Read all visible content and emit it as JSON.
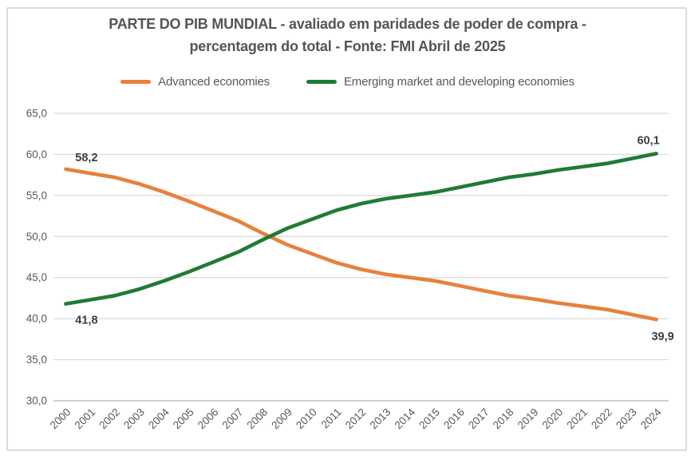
{
  "header": {
    "title_line1": "PARTE DO PIB MUNDIAL - avaliado em paridades de poder de compra -",
    "title_line2": "percentagem do total - Fonte: FMI Abril de 2025"
  },
  "chart_data": {
    "type": "line",
    "title": "PARTE DO PIB MUNDIAL - avaliado em paridades de poder de compra - percentagem do total - Fonte: FMI Abril de 2025",
    "legend_position": "top",
    "grid": true,
    "decimal_separator": ",",
    "x_labels": [
      "2000",
      "2001",
      "2002",
      "2003",
      "2004",
      "2005",
      "2006",
      "2007",
      "2008",
      "2009",
      "2010",
      "2011",
      "2012",
      "2013",
      "2014",
      "2015",
      "2016",
      "2017",
      "2018",
      "2019",
      "2020",
      "2021",
      "2022",
      "2023",
      "2024"
    ],
    "ylim": [
      30,
      65
    ],
    "y_ticks": {
      "values": [
        30,
        35,
        40,
        45,
        50,
        55,
        60,
        65
      ],
      "labels": [
        "30,0",
        "35,0",
        "40,0",
        "45,0",
        "50,0",
        "55,0",
        "60,0",
        "65,0"
      ]
    },
    "series": [
      {
        "name": "Advanced economies",
        "color": "#E8803C",
        "values": [
          58.2,
          57.7,
          57.2,
          56.4,
          55.4,
          54.3,
          53.1,
          51.9,
          50.4,
          49.0,
          47.9,
          46.8,
          46.0,
          45.4,
          45.0,
          44.6,
          44.0,
          43.4,
          42.8,
          42.4,
          41.9,
          41.5,
          41.1,
          40.5,
          39.9
        ]
      },
      {
        "name": "Emerging market and developing economies",
        "color": "#1F7B33",
        "values": [
          41.8,
          42.3,
          42.8,
          43.6,
          44.6,
          45.7,
          46.9,
          48.1,
          49.6,
          51.0,
          52.1,
          53.2,
          54.0,
          54.6,
          55.0,
          55.4,
          56.0,
          56.6,
          57.2,
          57.6,
          58.1,
          58.5,
          58.9,
          59.5,
          60.1
        ]
      }
    ],
    "point_labels": [
      {
        "series_index": 0,
        "point_index": 0,
        "text": "58,2"
      },
      {
        "series_index": 1,
        "point_index": 0,
        "text": "41,8"
      },
      {
        "series_index": 1,
        "point_index": 24,
        "text": "60,1"
      },
      {
        "series_index": 0,
        "point_index": 24,
        "text": "39,9"
      }
    ],
    "axis_colors": {
      "gridline": "#D9D9D9",
      "axis_line": "#BFBFBF",
      "tick_text": "#595959",
      "data_label_text": "#3F3F3F",
      "title_text": "#555555"
    }
  }
}
